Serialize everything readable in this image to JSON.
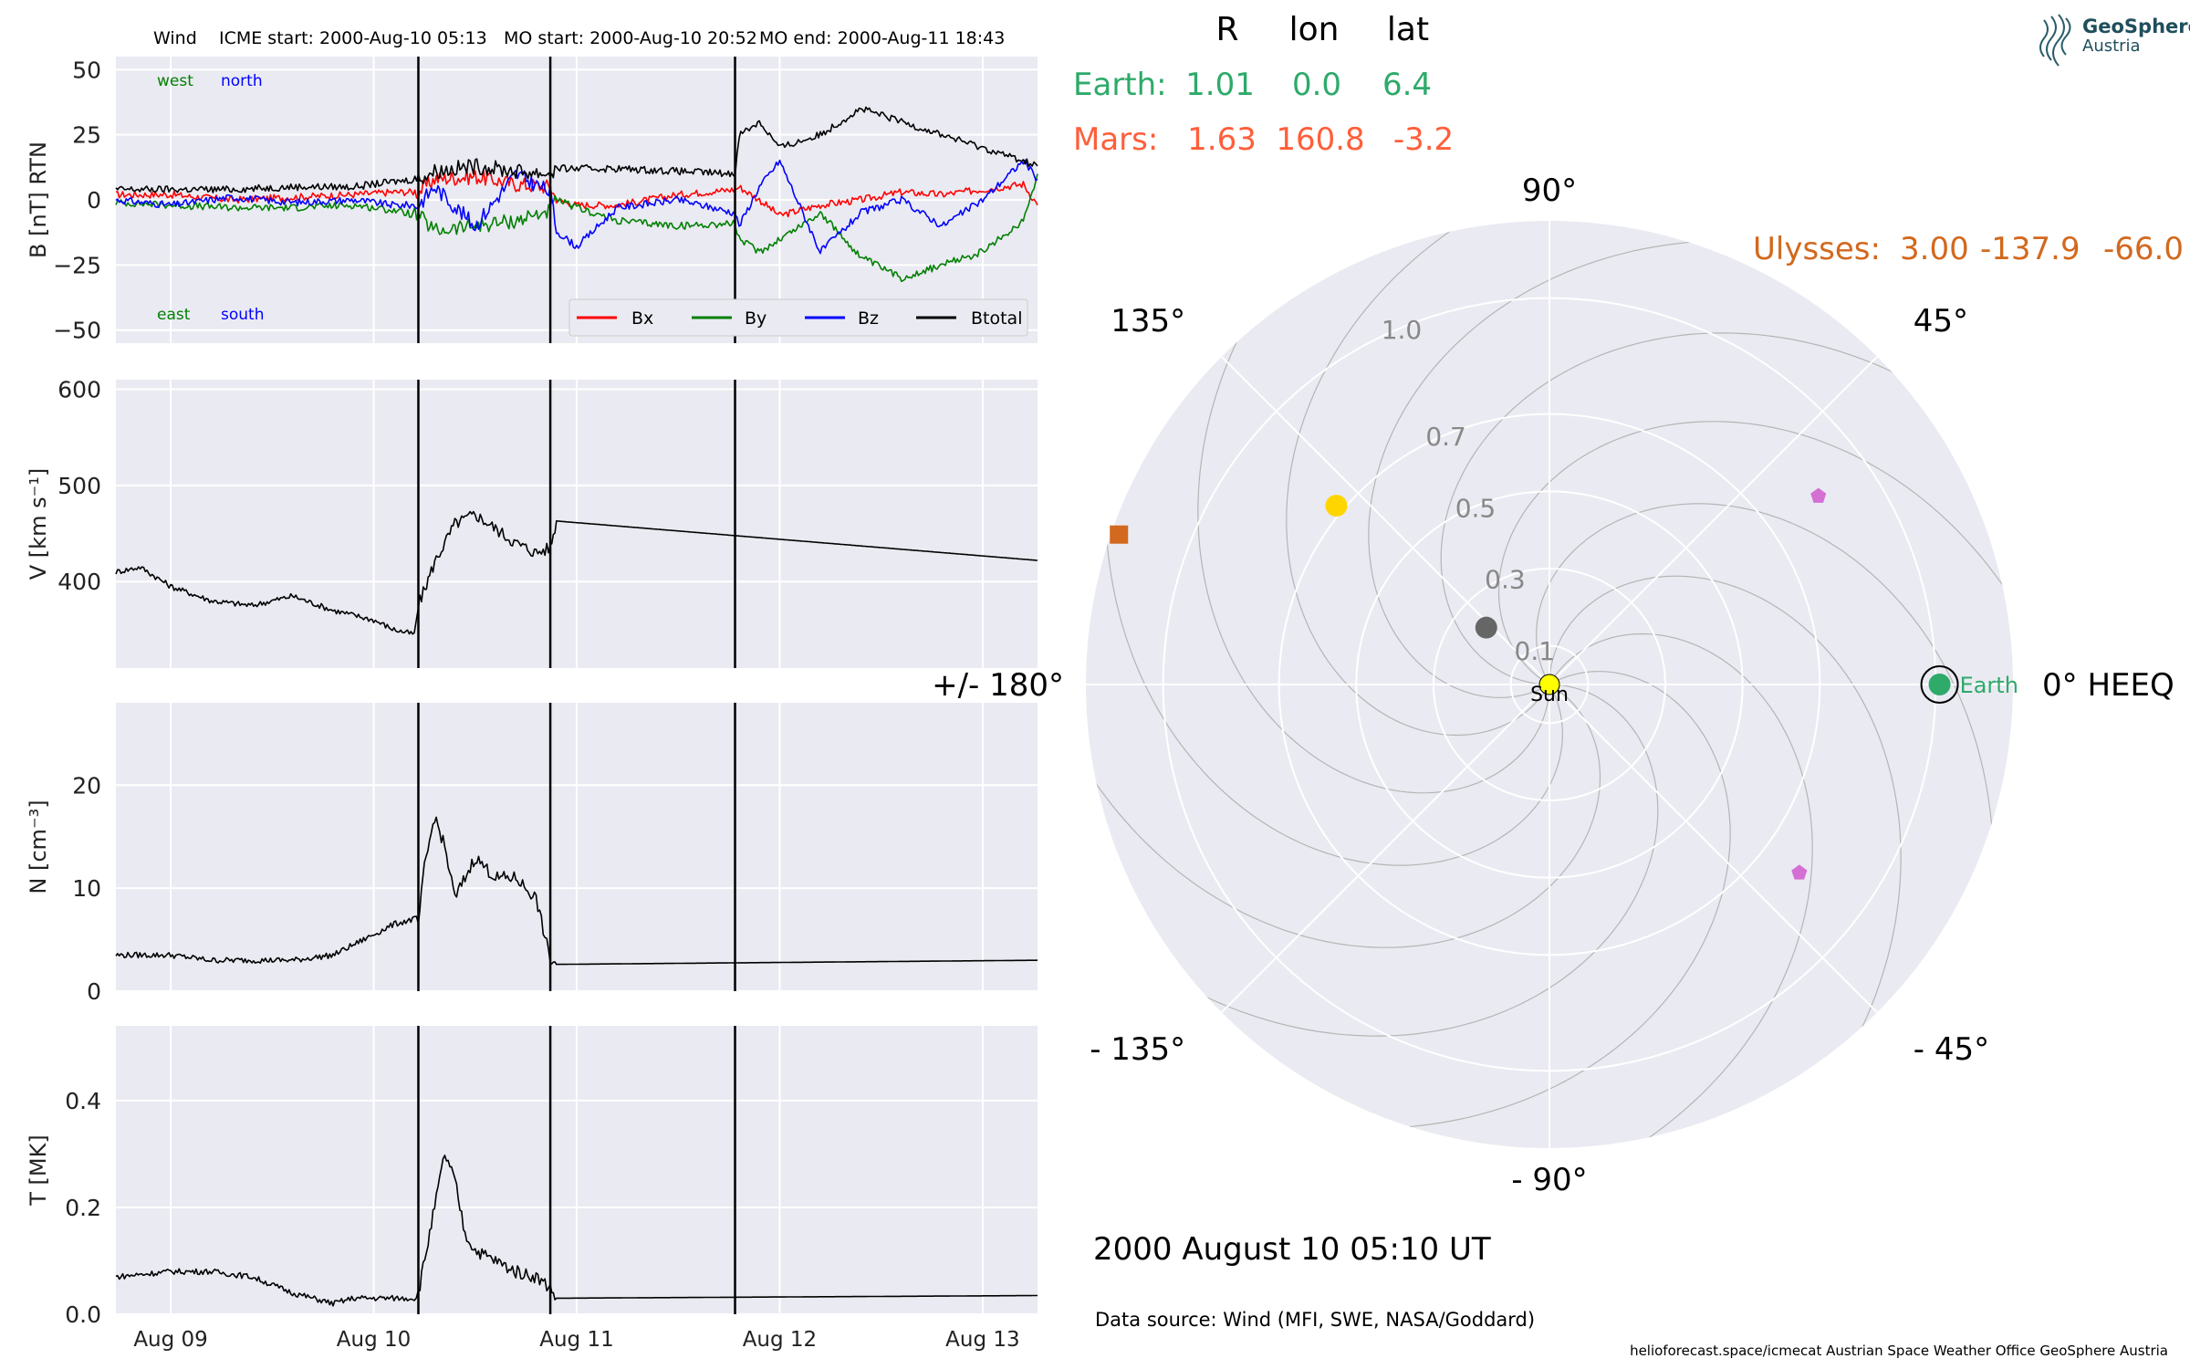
{
  "header": {
    "spacecraft": "Wind",
    "icme_start": "ICME start: 2000-Aug-10 05:13",
    "mo_start": "MO start: 2000-Aug-10 20:52",
    "mo_end": "MO end: 2000-Aug-11 18:43"
  },
  "logo": {
    "line1": "GeoSphere",
    "line2": "Austria"
  },
  "footer": {
    "date": "2000 August 10  05:10 UT",
    "source": "Data source: Wind (MFI, SWE, NASA/Goddard)",
    "credits": "helioforecast.space/icmecat   Austrian Space Weather Office   GeoSphere Austria"
  },
  "colors": {
    "Bx": "#ff0000",
    "By": "#008000",
    "Bz": "#0000ff",
    "Btotal": "#000000",
    "earth": "#2eaa6a",
    "mars": "#ff5e3a",
    "ulysses": "#d2691e",
    "panel_bg": "#eaeaf2"
  },
  "chart_data": [
    {
      "type": "line",
      "id": "mag",
      "ylabel": "B [nT] RTN",
      "ylim": [
        -55,
        55
      ],
      "yticks": [
        "50",
        "25",
        "0",
        "−25",
        "−50"
      ],
      "ytick_values": [
        50,
        25,
        0,
        -25,
        -50
      ],
      "annotations": {
        "west": "west",
        "north": "north",
        "east": "east",
        "south": "south"
      },
      "legend": [
        "Bx",
        "By",
        "Bz",
        "Btotal"
      ],
      "legend_placement": "bottom-right",
      "series": [
        {
          "name": "Bx",
          "x": [
            8.73,
            9.0,
            9.3,
            9.6,
            9.9,
            10.1,
            10.22,
            10.3,
            10.5,
            10.7,
            10.87,
            10.9,
            11.0,
            11.2,
            11.5,
            11.78,
            11.8,
            11.9,
            12.0,
            12.2,
            12.4,
            12.6,
            12.8,
            13.0,
            13.2,
            13.27
          ],
          "y": [
            2,
            2,
            0,
            1,
            2,
            3,
            3,
            8,
            9,
            6,
            5,
            0,
            -2,
            -2,
            2,
            4,
            5,
            0,
            -6,
            -2,
            0,
            3,
            2,
            4,
            6,
            -2
          ]
        },
        {
          "name": "By",
          "x": [
            8.73,
            9.0,
            9.3,
            9.6,
            9.9,
            10.1,
            10.22,
            10.3,
            10.5,
            10.7,
            10.87,
            10.9,
            11.0,
            11.2,
            11.5,
            11.78,
            11.8,
            11.9,
            12.0,
            12.2,
            12.4,
            12.6,
            12.8,
            13.0,
            13.2,
            13.27
          ],
          "y": [
            -1,
            -2,
            -3,
            -3,
            -2,
            -4,
            -6,
            -12,
            -10,
            -8,
            -4,
            0,
            -3,
            -8,
            -10,
            -9,
            -15,
            -20,
            -15,
            -5,
            -22,
            -30,
            -25,
            -20,
            -8,
            10
          ]
        },
        {
          "name": "Bz",
          "x": [
            8.73,
            9.0,
            9.3,
            9.6,
            9.9,
            10.1,
            10.22,
            10.3,
            10.5,
            10.7,
            10.87,
            10.9,
            11.0,
            11.2,
            11.5,
            11.78,
            11.8,
            11.9,
            12.0,
            12.2,
            12.4,
            12.6,
            12.8,
            13.0,
            13.2,
            13.27
          ],
          "y": [
            0,
            -2,
            1,
            -1,
            0,
            -2,
            -2,
            5,
            -10,
            10,
            3,
            -12,
            -18,
            -3,
            0,
            -5,
            -10,
            5,
            15,
            -20,
            -5,
            0,
            -10,
            0,
            15,
            8
          ]
        },
        {
          "name": "Btotal",
          "x": [
            8.73,
            9.0,
            9.3,
            9.6,
            9.9,
            10.1,
            10.22,
            10.3,
            10.5,
            10.7,
            10.87,
            10.9,
            11.0,
            11.2,
            11.5,
            11.78,
            11.8,
            11.9,
            12.0,
            12.2,
            12.4,
            12.6,
            12.8,
            13.0,
            13.2,
            13.27
          ],
          "y": [
            4,
            4,
            4,
            5,
            5,
            7,
            8,
            11,
            13,
            11,
            10,
            12,
            12,
            12,
            11,
            10,
            25,
            30,
            20,
            25,
            35,
            30,
            25,
            20,
            15,
            13
          ]
        }
      ]
    },
    {
      "type": "line",
      "id": "speed",
      "ylabel": "V [km s⁻¹]",
      "ylim": [
        310,
        610
      ],
      "yticks": [
        "600",
        "500",
        "400"
      ],
      "ytick_values": [
        600,
        500,
        400
      ],
      "series": [
        {
          "name": "V",
          "x": [
            8.73,
            8.85,
            9.0,
            9.2,
            9.4,
            9.6,
            9.8,
            10.0,
            10.1,
            10.2,
            10.22,
            10.3,
            10.4,
            10.5,
            10.6,
            10.7,
            10.8,
            10.87,
            10.9,
            13.27
          ],
          "y": [
            410,
            415,
            395,
            380,
            375,
            385,
            370,
            360,
            350,
            345,
            375,
            420,
            460,
            470,
            455,
            440,
            430,
            435,
            463,
            422
          ]
        }
      ]
    },
    {
      "type": "line",
      "id": "density",
      "ylabel": "N [cm⁻³]",
      "ylim": [
        0,
        28
      ],
      "yticks": [
        "20",
        "10",
        "0"
      ],
      "ytick_values": [
        20,
        10,
        0
      ],
      "series": [
        {
          "name": "N",
          "x": [
            8.73,
            9.0,
            9.2,
            9.4,
            9.6,
            9.8,
            9.9,
            10.0,
            10.1,
            10.2,
            10.22,
            10.25,
            10.3,
            10.35,
            10.4,
            10.5,
            10.6,
            10.7,
            10.8,
            10.87,
            10.9,
            13.27
          ],
          "y": [
            3.5,
            3.5,
            3.0,
            3.0,
            3.0,
            3.5,
            4.5,
            5.5,
            6.5,
            7.0,
            6.5,
            12.0,
            17.0,
            14.0,
            9.0,
            13.0,
            11.0,
            11.0,
            9.0,
            3.0,
            2.6,
            3.0
          ]
        }
      ]
    },
    {
      "type": "line",
      "id": "temperature",
      "ylabel": "T [MK]",
      "ylim": [
        0,
        0.54
      ],
      "yticks": [
        "0.4",
        "0.2",
        "0.0"
      ],
      "ytick_values": [
        0.4,
        0.2,
        0.0
      ],
      "xticks": [
        "Aug 09",
        "Aug 10",
        "Aug 11",
        "Aug 12",
        "Aug 13"
      ],
      "xtick_values": [
        9,
        10,
        11,
        12,
        13
      ],
      "xlim": [
        8.73,
        13.27
      ],
      "series": [
        {
          "name": "T",
          "x": [
            8.73,
            9.0,
            9.2,
            9.4,
            9.6,
            9.8,
            9.9,
            10.0,
            10.1,
            10.2,
            10.22,
            10.3,
            10.35,
            10.4,
            10.45,
            10.5,
            10.6,
            10.7,
            10.8,
            10.87,
            10.9,
            13.27
          ],
          "y": [
            0.07,
            0.08,
            0.08,
            0.07,
            0.04,
            0.02,
            0.03,
            0.03,
            0.03,
            0.03,
            0.04,
            0.2,
            0.3,
            0.25,
            0.15,
            0.12,
            0.1,
            0.08,
            0.07,
            0.05,
            0.03,
            0.035
          ]
        }
      ]
    },
    {
      "type": "scatter",
      "id": "orbit",
      "projection": "polar",
      "r_ticks": [
        "0.1",
        "0.3",
        "0.5",
        "0.7",
        "1.0"
      ],
      "r_tick_values": [
        0.1,
        0.3,
        0.5,
        0.7,
        1.0
      ],
      "angle_labels": [
        "0° HEEQ",
        "45°",
        "90°",
        "135°",
        "+/- 180°",
        "- 135°",
        "- 90°",
        "- 45°"
      ],
      "angle_values": [
        0,
        45,
        90,
        135,
        180,
        225,
        270,
        315
      ],
      "sun_label": "Sun",
      "earth_label": "Earth",
      "points": [
        {
          "name": "Earth",
          "lon": 0.0,
          "r": 1.01,
          "marker": "circle"
        },
        {
          "name": "Mars",
          "lon": 160.8,
          "r": 1.63,
          "marker": "square"
        },
        {
          "name": "Venus",
          "lon": 140,
          "r": 0.72,
          "marker": "circle"
        },
        {
          "name": "Mercury",
          "lon": 138,
          "r": 0.22,
          "marker": "circle"
        },
        {
          "name": "STA",
          "lon": 35,
          "r": 0.85,
          "marker": "pentagon"
        },
        {
          "name": "STB",
          "lon": -37,
          "r": 0.81,
          "marker": "pentagon"
        }
      ],
      "table": {
        "headers": [
          "R",
          "lon",
          "lat"
        ],
        "rows": [
          {
            "label": "Earth:",
            "R": "1.01",
            "lon": "0.0",
            "lat": "6.4"
          },
          {
            "label": "Mars:",
            "R": "1.63",
            "lon": "160.8",
            "lat": "-3.2"
          },
          {
            "label": "Ulysses:",
            "R": "3.00",
            "lon": "-137.9",
            "lat": "-66.0"
          }
        ]
      }
    }
  ]
}
